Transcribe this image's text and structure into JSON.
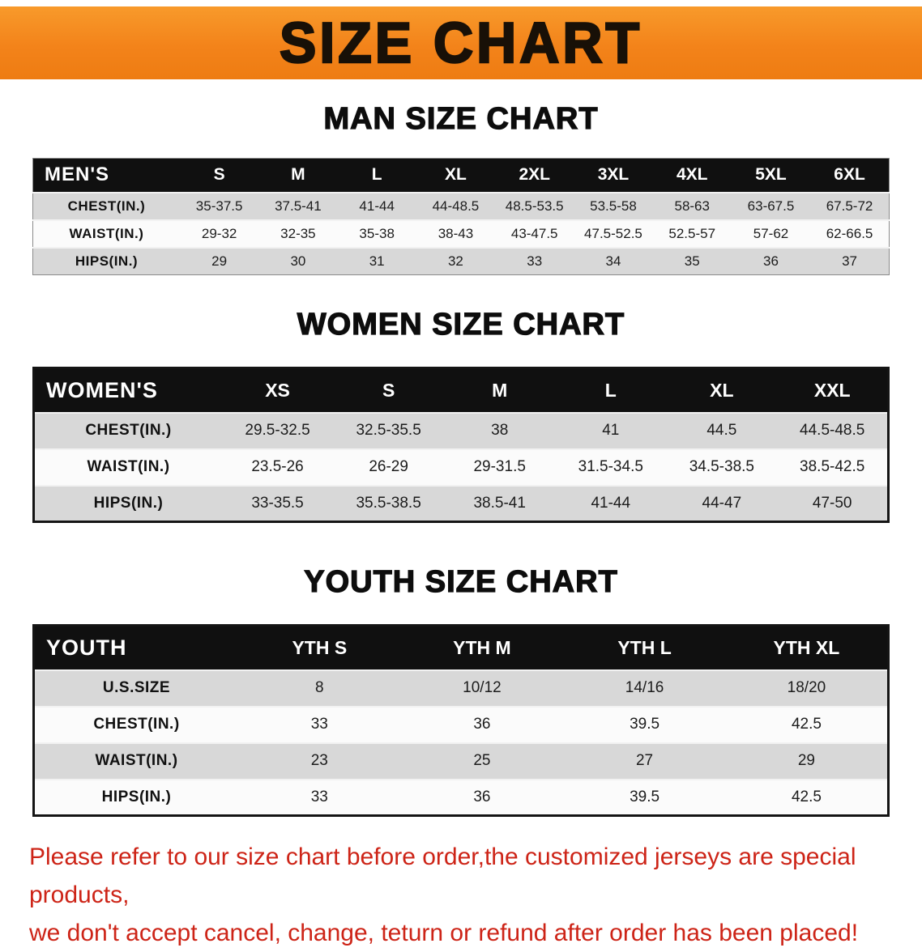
{
  "banner": {
    "title": "SIZE CHART",
    "bg_color": "#f3831a",
    "text_color": "#181007"
  },
  "sections": [
    {
      "heading": "MAN SIZE CHART",
      "table": {
        "header": [
          "MEN'S",
          "S",
          "M",
          "L",
          "XL",
          "2XL",
          "3XL",
          "4XL",
          "5XL",
          "6XL"
        ],
        "rows": [
          {
            "label": "CHEST(IN.)",
            "values": [
              "35-37.5",
              "37.5-41",
              "41-44",
              "44-48.5",
              "48.5-53.5",
              "53.5-58",
              "58-63",
              "63-67.5",
              "67.5-72"
            ]
          },
          {
            "label": "WAIST(IN.)",
            "values": [
              "29-32",
              "32-35",
              "35-38",
              "38-43",
              "43-47.5",
              "47.5-52.5",
              "52.5-57",
              "57-62",
              "62-66.5"
            ]
          },
          {
            "label": "HIPS(IN.)",
            "values": [
              "29",
              "30",
              "31",
              "32",
              "33",
              "34",
              "35",
              "36",
              "37"
            ]
          }
        ]
      }
    },
    {
      "heading": "WOMEN SIZE CHART",
      "table": {
        "header": [
          "WOMEN'S",
          "XS",
          "S",
          "M",
          "L",
          "XL",
          "XXL"
        ],
        "rows": [
          {
            "label": "CHEST(IN.)",
            "values": [
              "29.5-32.5",
              "32.5-35.5",
              "38",
              "41",
              "44.5",
              "44.5-48.5"
            ]
          },
          {
            "label": "WAIST(IN.)",
            "values": [
              "23.5-26",
              "26-29",
              "29-31.5",
              "31.5-34.5",
              "34.5-38.5",
              "38.5-42.5"
            ]
          },
          {
            "label": "HIPS(IN.)",
            "values": [
              "33-35.5",
              "35.5-38.5",
              "38.5-41",
              "41-44",
              "44-47",
              "47-50"
            ]
          }
        ]
      }
    },
    {
      "heading": "YOUTH SIZE CHART",
      "table": {
        "header": [
          "YOUTH",
          "YTH S",
          "YTH M",
          "YTH L",
          "YTH XL"
        ],
        "rows": [
          {
            "label": "U.S.SIZE",
            "values": [
              "8",
              "10/12",
              "14/16",
              "18/20"
            ]
          },
          {
            "label": "CHEST(IN.)",
            "values": [
              "33",
              "36",
              "39.5",
              "42.5"
            ]
          },
          {
            "label": "WAIST(IN.)",
            "values": [
              "23",
              "25",
              "27",
              "29"
            ]
          },
          {
            "label": "HIPS(IN.)",
            "values": [
              "33",
              "36",
              "39.5",
              "42.5"
            ]
          }
        ]
      }
    }
  ],
  "table_style": {
    "header_bg": "#101010",
    "header_text": "#ffffff",
    "stripe_gray": "#d8d8d8",
    "stripe_white": "#fbfbfb"
  },
  "disclaimer": {
    "line1": "Please refer to our size chart before order,the customized jerseys are special products,",
    "line2": "we don't accept cancel, change, teturn or refund after order has been placed!",
    "color": "#cd2417"
  }
}
